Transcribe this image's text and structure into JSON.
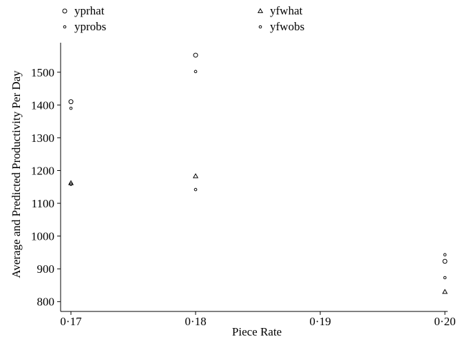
{
  "chart_data": {
    "type": "scatter",
    "xlabel": "Piece Rate",
    "ylabel": "Average and Predicted Productivity Per Day",
    "xlim": [
      0.17,
      0.2
    ],
    "ylim": [
      770,
      1590
    ],
    "xticks": [
      0.17,
      0.18,
      0.19,
      0.2
    ],
    "xtick_labels": [
      "0·17",
      "0·18",
      "0·19",
      "0·20"
    ],
    "yticks": [
      800,
      900,
      1000,
      1100,
      1200,
      1300,
      1400,
      1500
    ],
    "ytick_labels": [
      "800",
      "900",
      "1000",
      "1100",
      "1200",
      "1300",
      "1400",
      "1500"
    ],
    "grid": false,
    "legend_position": "top",
    "series": [
      {
        "name": "yprhat",
        "marker": "circle",
        "x": [
          0.17,
          0.18,
          0.2
        ],
        "y": [
          1410,
          1552,
          923
        ]
      },
      {
        "name": "yprobs",
        "marker": "small-circle",
        "x": [
          0.17,
          0.18,
          0.2
        ],
        "y": [
          1390,
          1502,
          943
        ]
      },
      {
        "name": "yfwhat",
        "marker": "triangle",
        "x": [
          0.17,
          0.18,
          0.2
        ],
        "y": [
          1162,
          1183,
          830
        ]
      },
      {
        "name": "yfwobs",
        "marker": "small-circle",
        "x": [
          0.17,
          0.18,
          0.2
        ],
        "y": [
          1158,
          1142,
          873
        ]
      }
    ]
  }
}
